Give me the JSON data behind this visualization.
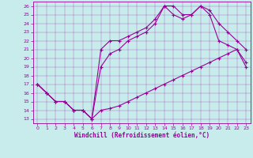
{
  "xlabel": "Windchill (Refroidissement éolien,°C)",
  "bg_color": "#c8ecec",
  "line_color": "#990099",
  "xlim": [
    -0.5,
    23.5
  ],
  "ylim": [
    12.5,
    26.5
  ],
  "xticks": [
    0,
    1,
    2,
    3,
    4,
    5,
    6,
    7,
    8,
    9,
    10,
    11,
    12,
    13,
    14,
    15,
    16,
    17,
    18,
    19,
    20,
    21,
    22,
    23
  ],
  "yticks": [
    13,
    14,
    15,
    16,
    17,
    18,
    19,
    20,
    21,
    22,
    23,
    24,
    25,
    26
  ],
  "line1_x": [
    0,
    1,
    2,
    3,
    4,
    5,
    6,
    7,
    8,
    9,
    10,
    11,
    12,
    13,
    14,
    15,
    16,
    17,
    18,
    19,
    20,
    21,
    22,
    23
  ],
  "line1_y": [
    17,
    16,
    15,
    15,
    14,
    14,
    13,
    14,
    14.2,
    14.5,
    15,
    15.5,
    16,
    16.5,
    17,
    17.5,
    18,
    18.5,
    19,
    19.5,
    20,
    20.5,
    21,
    19.5
  ],
  "line2_x": [
    0,
    1,
    2,
    3,
    4,
    5,
    6,
    7,
    8,
    9,
    10,
    11,
    12,
    13,
    14,
    15,
    16,
    17,
    18,
    19,
    20,
    21,
    22,
    23
  ],
  "line2_y": [
    17,
    16,
    15,
    15,
    14,
    14,
    13,
    19,
    20.5,
    21,
    22,
    22.5,
    23,
    24,
    26,
    25,
    24.5,
    25,
    26,
    25,
    22,
    21.5,
    21,
    19
  ],
  "line3_x": [
    0,
    1,
    2,
    3,
    4,
    5,
    6,
    7,
    8,
    9,
    10,
    11,
    12,
    13,
    14,
    15,
    16,
    17,
    18,
    19,
    20,
    21,
    22,
    23
  ],
  "line3_y": [
    17,
    16,
    15,
    15,
    14,
    14,
    13,
    21,
    22,
    22,
    22.5,
    23,
    23.5,
    24.5,
    26,
    26,
    25,
    25,
    26,
    25.5,
    24,
    23,
    22,
    21
  ]
}
